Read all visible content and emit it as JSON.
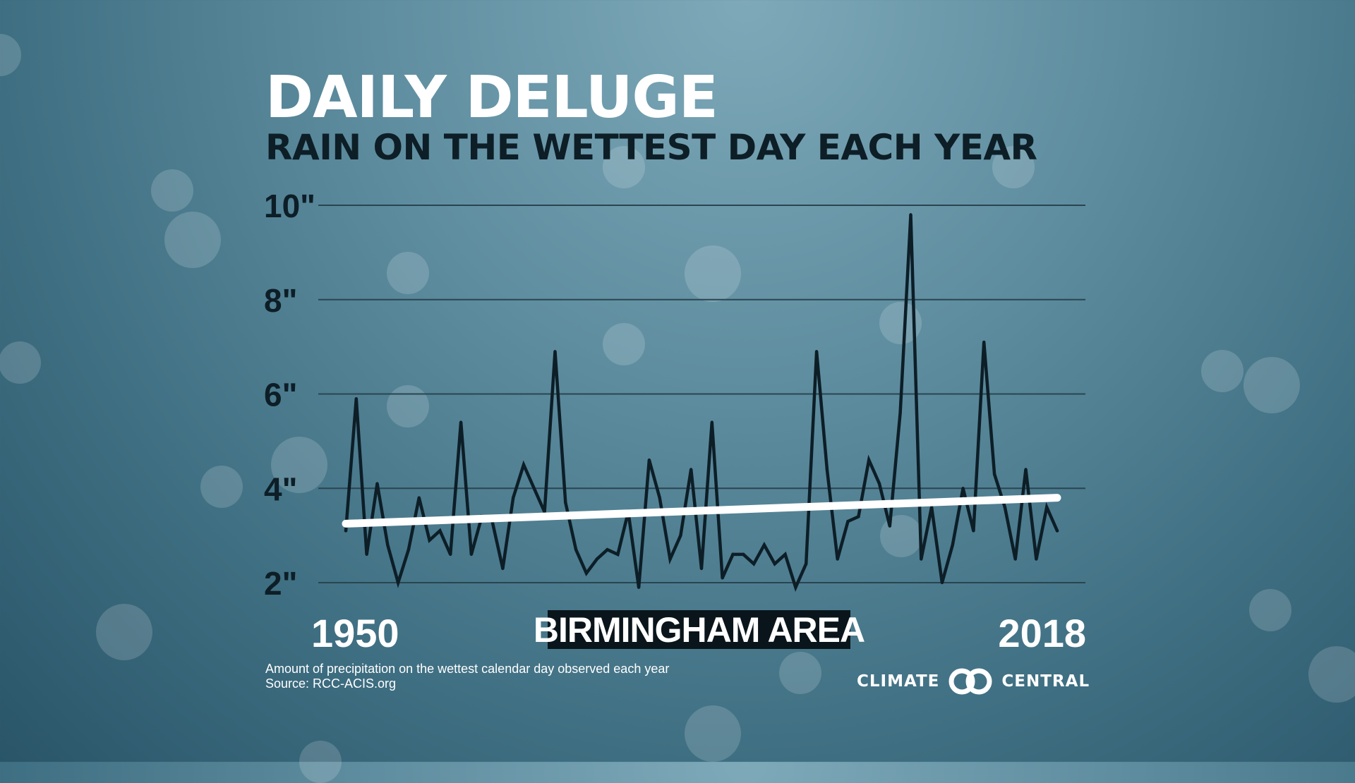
{
  "title": "DAILY DELUGE",
  "subtitle": "RAIN ON THE WETTEST DAY EACH YEAR",
  "region": "BIRMINGHAM AREA",
  "footnote": {
    "description": "Amount of precipitation on the wettest calendar day observed each year",
    "source": "Source: RCC-ACIS.org"
  },
  "logo": {
    "left_text": "CLIMATE",
    "right_text": "CENTRAL",
    "icon": "interlocking-rings-icon"
  },
  "colors": {
    "series_line": "#0d1e27",
    "trend_line": "#ffffff",
    "gridline": "#2a4550",
    "region_box": "#0a151b"
  },
  "chart_data": {
    "type": "line",
    "title": "DAILY DELUGE",
    "subtitle": "RAIN ON THE WETTEST DAY EACH YEAR",
    "xlabel": "",
    "ylabel": "",
    "xlim": [
      1950,
      2018
    ],
    "ylim": [
      2,
      10
    ],
    "yticks": [
      10,
      8,
      6,
      4,
      2
    ],
    "ytick_labels": [
      "10\"",
      "8\"",
      "6\"",
      "4\"",
      "2\""
    ],
    "xtick_labels": [
      "1950",
      "2018"
    ],
    "grid": "horizontal",
    "x": [
      1950,
      1951,
      1952,
      1953,
      1954,
      1955,
      1956,
      1957,
      1958,
      1959,
      1960,
      1961,
      1962,
      1963,
      1964,
      1965,
      1966,
      1967,
      1968,
      1969,
      1970,
      1971,
      1972,
      1973,
      1974,
      1975,
      1976,
      1977,
      1978,
      1979,
      1980,
      1981,
      1982,
      1983,
      1984,
      1985,
      1986,
      1987,
      1988,
      1989,
      1990,
      1991,
      1992,
      1993,
      1994,
      1995,
      1996,
      1997,
      1998,
      1999,
      2000,
      2001,
      2002,
      2003,
      2004,
      2005,
      2006,
      2007,
      2008,
      2009,
      2010,
      2011,
      2012,
      2013,
      2014,
      2015,
      2016,
      2017,
      2018
    ],
    "series": [
      {
        "values": [
          3.1,
          5.9,
          2.6,
          4.1,
          2.8,
          2.0,
          2.7,
          3.8,
          2.9,
          3.1,
          2.6,
          5.4,
          2.6,
          3.4,
          3.3,
          2.3,
          3.8,
          4.5,
          4.0,
          3.5,
          6.9,
          3.7,
          2.7,
          2.2,
          2.5,
          2.7,
          2.6,
          3.5,
          1.9,
          4.6,
          3.8,
          2.5,
          3.0,
          4.4,
          2.3,
          5.4,
          2.1,
          2.6,
          2.6,
          2.4,
          2.8,
          2.4,
          2.6,
          1.9,
          2.4,
          6.9,
          4.4,
          2.5,
          3.3,
          3.4,
          4.6,
          4.1,
          3.2,
          5.6,
          9.8,
          2.5,
          3.6,
          2.0,
          2.8,
          4.0,
          3.1,
          7.1,
          4.3,
          3.6,
          2.5,
          4.4,
          2.5,
          3.6,
          3.1
        ]
      }
    ],
    "trend": {
      "start": [
        1950,
        3.25
      ],
      "end": [
        2018,
        3.8
      ]
    }
  }
}
